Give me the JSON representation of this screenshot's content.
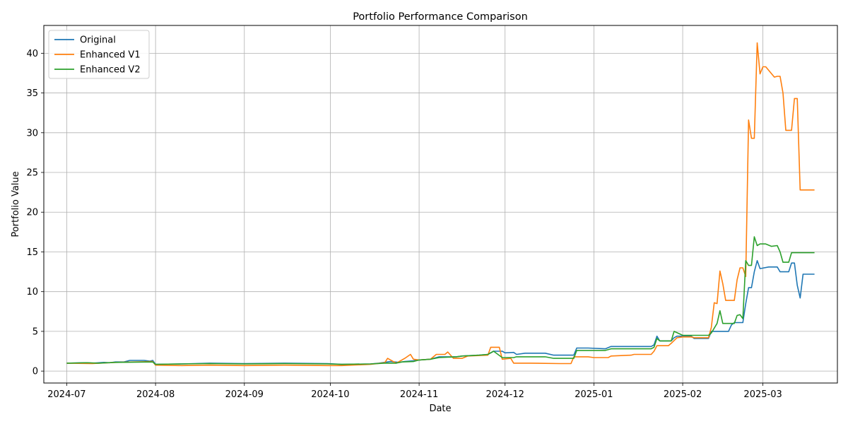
{
  "chart_data": {
    "type": "line",
    "title": "Portfolio Performance Comparison",
    "xlabel": "Date",
    "ylabel": "Portfolio Value",
    "xlim": [
      "2024-06-23",
      "2025-03-27"
    ],
    "ylim": [
      -1.5,
      43.5
    ],
    "grid": true,
    "legend_position": "top-left",
    "x_ticks": [
      {
        "date": "2024-07-01",
        "label": "2024-07"
      },
      {
        "date": "2024-08-01",
        "label": "2024-08"
      },
      {
        "date": "2024-09-01",
        "label": "2024-09"
      },
      {
        "date": "2024-10-01",
        "label": "2024-10"
      },
      {
        "date": "2024-11-01",
        "label": "2024-11"
      },
      {
        "date": "2024-12-01",
        "label": "2024-12"
      },
      {
        "date": "2025-01-01",
        "label": "2025-01"
      },
      {
        "date": "2025-02-01",
        "label": "2025-02"
      },
      {
        "date": "2025-03-01",
        "label": "2025-03"
      }
    ],
    "y_ticks": [
      0,
      5,
      10,
      15,
      20,
      25,
      30,
      35,
      40
    ],
    "series": [
      {
        "name": "Original",
        "color": "#1f77b4",
        "points": [
          [
            "2024-07-01",
            1.0
          ],
          [
            "2024-07-08",
            1.05
          ],
          [
            "2024-07-10",
            1.0
          ],
          [
            "2024-07-14",
            1.1
          ],
          [
            "2024-07-16",
            1.05
          ],
          [
            "2024-07-18",
            1.15
          ],
          [
            "2024-07-21",
            1.15
          ],
          [
            "2024-07-23",
            1.35
          ],
          [
            "2024-07-28",
            1.35
          ],
          [
            "2024-07-30",
            1.25
          ],
          [
            "2024-07-31",
            1.35
          ],
          [
            "2024-08-01",
            0.85
          ],
          [
            "2024-08-10",
            0.9
          ],
          [
            "2024-08-20",
            1.0
          ],
          [
            "2024-09-01",
            0.95
          ],
          [
            "2024-09-15",
            1.0
          ],
          [
            "2024-09-30",
            0.95
          ],
          [
            "2024-10-05",
            0.85
          ],
          [
            "2024-10-15",
            0.9
          ],
          [
            "2024-10-18",
            1.0
          ],
          [
            "2024-10-22",
            1.2
          ],
          [
            "2024-10-25",
            1.1
          ],
          [
            "2024-10-27",
            1.2
          ],
          [
            "2024-10-30",
            1.3
          ],
          [
            "2024-11-01",
            1.4
          ],
          [
            "2024-11-05",
            1.5
          ],
          [
            "2024-11-08",
            1.8
          ],
          [
            "2024-11-14",
            1.8
          ],
          [
            "2024-11-16",
            1.9
          ],
          [
            "2024-11-22",
            2.0
          ],
          [
            "2024-11-25",
            2.1
          ],
          [
            "2024-11-27",
            2.5
          ],
          [
            "2024-11-30",
            2.5
          ],
          [
            "2024-12-01",
            2.3
          ],
          [
            "2024-12-04",
            2.35
          ],
          [
            "2024-12-05",
            2.1
          ],
          [
            "2024-12-08",
            2.25
          ],
          [
            "2024-12-15",
            2.25
          ],
          [
            "2024-12-18",
            2.0
          ],
          [
            "2024-12-25",
            2.0
          ],
          [
            "2024-12-26",
            2.9
          ],
          [
            "2024-12-30",
            2.9
          ],
          [
            "2025-01-05",
            2.8
          ],
          [
            "2025-01-07",
            3.1
          ],
          [
            "2025-01-15",
            3.1
          ],
          [
            "2025-01-20",
            3.1
          ],
          [
            "2025-01-21",
            3.1
          ],
          [
            "2025-01-22",
            3.3
          ],
          [
            "2025-01-23",
            4.4
          ],
          [
            "2025-01-24",
            3.8
          ],
          [
            "2025-01-26",
            3.8
          ],
          [
            "2025-01-28",
            3.8
          ],
          [
            "2025-01-29",
            4.2
          ],
          [
            "2025-01-30",
            4.4
          ],
          [
            "2025-02-01",
            4.4
          ],
          [
            "2025-02-04",
            4.4
          ],
          [
            "2025-02-05",
            4.1
          ],
          [
            "2025-02-10",
            4.1
          ],
          [
            "2025-02-11",
            5.0
          ],
          [
            "2025-02-17",
            5.0
          ],
          [
            "2025-02-18",
            5.8
          ],
          [
            "2025-02-19",
            6.1
          ],
          [
            "2025-02-22",
            6.1
          ],
          [
            "2025-02-23",
            8.5
          ],
          [
            "2025-02-24",
            10.5
          ],
          [
            "2025-02-25",
            10.5
          ],
          [
            "2025-02-26",
            12.5
          ],
          [
            "2025-02-27",
            13.9
          ],
          [
            "2025-02-28",
            12.9
          ],
          [
            "2025-03-03",
            13.1
          ],
          [
            "2025-03-06",
            13.1
          ],
          [
            "2025-03-07",
            12.5
          ],
          [
            "2025-03-10",
            12.5
          ],
          [
            "2025-03-11",
            13.6
          ],
          [
            "2025-03-12",
            13.6
          ],
          [
            "2025-03-13",
            10.8
          ],
          [
            "2025-03-14",
            9.2
          ],
          [
            "2025-03-15",
            12.2
          ],
          [
            "2025-03-19",
            12.2
          ]
        ]
      },
      {
        "name": "Enhanced V1",
        "color": "#ff7f0e",
        "points": [
          [
            "2024-07-01",
            1.0
          ],
          [
            "2024-07-10",
            0.95
          ],
          [
            "2024-07-18",
            1.1
          ],
          [
            "2024-07-31",
            1.2
          ],
          [
            "2024-08-01",
            0.75
          ],
          [
            "2024-08-10",
            0.7
          ],
          [
            "2024-08-20",
            0.75
          ],
          [
            "2024-09-01",
            0.7
          ],
          [
            "2024-09-15",
            0.75
          ],
          [
            "2024-09-30",
            0.7
          ],
          [
            "2024-10-05",
            0.7
          ],
          [
            "2024-10-15",
            0.85
          ],
          [
            "2024-10-20",
            1.05
          ],
          [
            "2024-10-21",
            1.6
          ],
          [
            "2024-10-24",
            1.0
          ],
          [
            "2024-10-27",
            1.6
          ],
          [
            "2024-10-29",
            2.1
          ],
          [
            "2024-10-30",
            1.5
          ],
          [
            "2024-11-01",
            1.4
          ],
          [
            "2024-11-05",
            1.5
          ],
          [
            "2024-11-07",
            2.1
          ],
          [
            "2024-11-10",
            2.1
          ],
          [
            "2024-11-11",
            2.4
          ],
          [
            "2024-11-13",
            1.6
          ],
          [
            "2024-11-16",
            1.6
          ],
          [
            "2024-11-18",
            1.9
          ],
          [
            "2024-11-25",
            2.0
          ],
          [
            "2024-11-26",
            3.0
          ],
          [
            "2024-11-29",
            3.0
          ],
          [
            "2024-11-30",
            1.5
          ],
          [
            "2024-12-03",
            1.6
          ],
          [
            "2024-12-04",
            1.0
          ],
          [
            "2024-12-10",
            1.0
          ],
          [
            "2024-12-20",
            0.95
          ],
          [
            "2024-12-24",
            0.95
          ],
          [
            "2024-12-25",
            1.8
          ],
          [
            "2024-12-30",
            1.8
          ],
          [
            "2025-01-01",
            1.7
          ],
          [
            "2025-01-06",
            1.7
          ],
          [
            "2025-01-07",
            1.9
          ],
          [
            "2025-01-14",
            2.0
          ],
          [
            "2025-01-15",
            2.1
          ],
          [
            "2025-01-21",
            2.1
          ],
          [
            "2025-01-22",
            2.5
          ],
          [
            "2025-01-23",
            3.2
          ],
          [
            "2025-01-27",
            3.2
          ],
          [
            "2025-01-28",
            3.5
          ],
          [
            "2025-01-30",
            4.2
          ],
          [
            "2025-02-01",
            4.3
          ],
          [
            "2025-02-04",
            4.3
          ],
          [
            "2025-02-05",
            4.2
          ],
          [
            "2025-02-10",
            4.2
          ],
          [
            "2025-02-11",
            5.5
          ],
          [
            "2025-02-12",
            8.6
          ],
          [
            "2025-02-13",
            8.5
          ],
          [
            "2025-02-14",
            12.6
          ],
          [
            "2025-02-15",
            11.0
          ],
          [
            "2025-02-16",
            8.9
          ],
          [
            "2025-02-19",
            8.9
          ],
          [
            "2025-02-20",
            11.5
          ],
          [
            "2025-02-21",
            13.0
          ],
          [
            "2025-02-22",
            13.0
          ],
          [
            "2025-02-23",
            11.9
          ],
          [
            "2025-02-24",
            31.6
          ],
          [
            "2025-02-25",
            29.3
          ],
          [
            "2025-02-26",
            29.3
          ],
          [
            "2025-02-27",
            41.3
          ],
          [
            "2025-02-28",
            37.4
          ],
          [
            "2025-03-01",
            38.3
          ],
          [
            "2025-03-02",
            38.3
          ],
          [
            "2025-03-05",
            37.0
          ],
          [
            "2025-03-06",
            37.1
          ],
          [
            "2025-03-07",
            37.1
          ],
          [
            "2025-03-08",
            35.0
          ],
          [
            "2025-03-09",
            30.3
          ],
          [
            "2025-03-11",
            30.3
          ],
          [
            "2025-03-12",
            34.3
          ],
          [
            "2025-03-13",
            34.3
          ],
          [
            "2025-03-14",
            22.8
          ],
          [
            "2025-03-19",
            22.8
          ]
        ]
      },
      {
        "name": "Enhanced V2",
        "color": "#2ca02c",
        "points": [
          [
            "2024-07-01",
            1.0
          ],
          [
            "2024-07-08",
            1.05
          ],
          [
            "2024-07-12",
            1.0
          ],
          [
            "2024-07-18",
            1.1
          ],
          [
            "2024-07-31",
            1.15
          ],
          [
            "2024-08-01",
            0.85
          ],
          [
            "2024-08-10",
            0.9
          ],
          [
            "2024-08-20",
            0.95
          ],
          [
            "2024-09-01",
            0.9
          ],
          [
            "2024-09-15",
            0.95
          ],
          [
            "2024-09-30",
            0.9
          ],
          [
            "2024-10-05",
            0.85
          ],
          [
            "2024-10-15",
            0.9
          ],
          [
            "2024-10-20",
            1.0
          ],
          [
            "2024-10-24",
            1.0
          ],
          [
            "2024-10-26",
            1.15
          ],
          [
            "2024-10-30",
            1.2
          ],
          [
            "2024-11-01",
            1.4
          ],
          [
            "2024-11-05",
            1.5
          ],
          [
            "2024-11-08",
            1.7
          ],
          [
            "2024-11-14",
            1.8
          ],
          [
            "2024-11-16",
            1.9
          ],
          [
            "2024-11-22",
            2.0
          ],
          [
            "2024-11-25",
            2.1
          ],
          [
            "2024-11-27",
            2.5
          ],
          [
            "2024-11-30",
            1.7
          ],
          [
            "2024-12-04",
            1.7
          ],
          [
            "2024-12-05",
            1.8
          ],
          [
            "2024-12-15",
            1.8
          ],
          [
            "2024-12-18",
            1.6
          ],
          [
            "2024-12-25",
            1.6
          ],
          [
            "2024-12-26",
            2.6
          ],
          [
            "2024-12-30",
            2.6
          ],
          [
            "2025-01-05",
            2.6
          ],
          [
            "2025-01-07",
            2.8
          ],
          [
            "2025-01-15",
            2.8
          ],
          [
            "2025-01-21",
            2.8
          ],
          [
            "2025-01-22",
            3.0
          ],
          [
            "2025-01-23",
            4.1
          ],
          [
            "2025-01-24",
            3.8
          ],
          [
            "2025-01-28",
            3.8
          ],
          [
            "2025-01-29",
            5.0
          ],
          [
            "2025-02-01",
            4.5
          ],
          [
            "2025-02-05",
            4.5
          ],
          [
            "2025-02-10",
            4.5
          ],
          [
            "2025-02-11",
            4.8
          ],
          [
            "2025-02-13",
            6.0
          ],
          [
            "2025-02-14",
            7.6
          ],
          [
            "2025-02-15",
            6.0
          ],
          [
            "2025-02-19",
            6.0
          ],
          [
            "2025-02-20",
            7.0
          ],
          [
            "2025-02-21",
            7.1
          ],
          [
            "2025-02-22",
            6.6
          ],
          [
            "2025-02-23",
            13.9
          ],
          [
            "2025-02-24",
            13.3
          ],
          [
            "2025-02-25",
            13.3
          ],
          [
            "2025-02-26",
            16.9
          ],
          [
            "2025-02-27",
            15.8
          ],
          [
            "2025-02-28",
            16.0
          ],
          [
            "2025-03-02",
            16.0
          ],
          [
            "2025-03-04",
            15.7
          ],
          [
            "2025-03-06",
            15.8
          ],
          [
            "2025-03-07",
            15.0
          ],
          [
            "2025-03-08",
            13.7
          ],
          [
            "2025-03-10",
            13.7
          ],
          [
            "2025-03-11",
            14.9
          ],
          [
            "2025-03-19",
            14.9
          ]
        ]
      }
    ]
  }
}
